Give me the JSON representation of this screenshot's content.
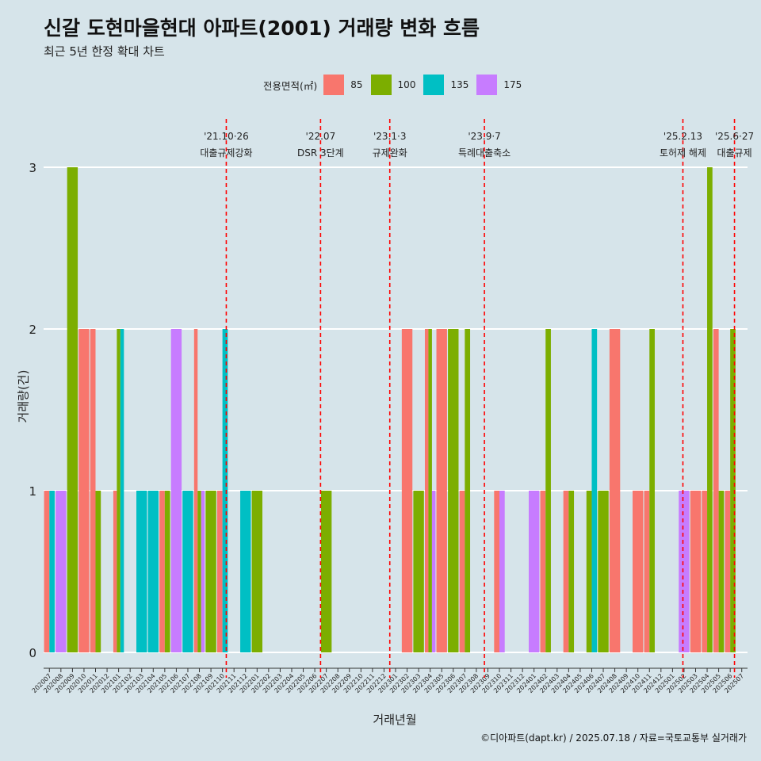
{
  "header": {
    "title": "신갈 도현마을현대 아파트(2001) 거래량 변화 흐름",
    "subtitle": "최근 5년 한정 확대 차트"
  },
  "footer": {
    "credit": "©디아파트(dapt.kr) / 2025.07.18 / 자료=국토교통부 실거래가"
  },
  "colors": {
    "background": "#d6e4ea",
    "gridline": "#ffffff",
    "event_line": "#ff0000"
  },
  "chart_data": {
    "type": "bar",
    "title": "신갈 도현마을현대 아파트(2001) 거래량 변화 흐름",
    "xlabel": "거래년월",
    "ylabel": "거래량(건)",
    "ylim": [
      0,
      3
    ],
    "yticks": [
      0,
      1,
      2,
      3
    ],
    "grid": true,
    "legend_title": "전용면적(㎡)",
    "legend_position": "top",
    "series": [
      {
        "name": "85",
        "color": "#f8766d"
      },
      {
        "name": "100",
        "color": "#7cae00"
      },
      {
        "name": "135",
        "color": "#00bfc4"
      },
      {
        "name": "175",
        "color": "#c77cff"
      }
    ],
    "categories": [
      "202007",
      "202008",
      "202009",
      "202010",
      "202011",
      "202012",
      "202101",
      "202102",
      "202103",
      "202104",
      "202105",
      "202106",
      "202107",
      "202108",
      "202109",
      "202110",
      "202111",
      "202112",
      "202201",
      "202202",
      "202203",
      "202204",
      "202205",
      "202206",
      "202207",
      "202208",
      "202209",
      "202210",
      "202211",
      "202212",
      "202301",
      "202302",
      "202303",
      "202304",
      "202305",
      "202306",
      "202307",
      "202308",
      "202309",
      "202310",
      "202311",
      "202312",
      "202401",
      "202402",
      "202403",
      "202404",
      "202405",
      "202406",
      "202407",
      "202408",
      "202409",
      "202410",
      "202411",
      "202412",
      "202501",
      "202502",
      "202503",
      "202504",
      "202505",
      "202506",
      "202507"
    ],
    "bars": [
      {
        "month": "202007",
        "items": [
          {
            "s": "85",
            "v": 1
          },
          {
            "s": "135",
            "v": 1
          }
        ]
      },
      {
        "month": "202008",
        "items": [
          {
            "s": "175",
            "v": 1
          }
        ]
      },
      {
        "month": "202009",
        "items": [
          {
            "s": "100",
            "v": 3
          }
        ]
      },
      {
        "month": "202010",
        "items": [
          {
            "s": "85",
            "v": 2
          }
        ]
      },
      {
        "month": "202011",
        "items": [
          {
            "s": "85",
            "v": 2
          },
          {
            "s": "100",
            "v": 1
          }
        ]
      },
      {
        "month": "202101",
        "items": [
          {
            "s": "85",
            "v": 1
          },
          {
            "s": "100",
            "v": 2
          },
          {
            "s": "135",
            "v": 2
          }
        ]
      },
      {
        "month": "202103",
        "items": [
          {
            "s": "135",
            "v": 1
          }
        ]
      },
      {
        "month": "202104",
        "items": [
          {
            "s": "135",
            "v": 1
          }
        ]
      },
      {
        "month": "202105",
        "items": [
          {
            "s": "85",
            "v": 1
          },
          {
            "s": "100",
            "v": 1
          }
        ]
      },
      {
        "month": "202106",
        "items": [
          {
            "s": "175",
            "v": 2
          }
        ]
      },
      {
        "month": "202107",
        "items": [
          {
            "s": "135",
            "v": 1
          }
        ]
      },
      {
        "month": "202108",
        "items": [
          {
            "s": "85",
            "v": 2
          },
          {
            "s": "100",
            "v": 1
          },
          {
            "s": "175",
            "v": 1
          }
        ]
      },
      {
        "month": "202109",
        "items": [
          {
            "s": "100",
            "v": 1
          }
        ]
      },
      {
        "month": "202110",
        "items": [
          {
            "s": "85",
            "v": 1
          },
          {
            "s": "135",
            "v": 2
          }
        ]
      },
      {
        "month": "202112",
        "items": [
          {
            "s": "135",
            "v": 1
          }
        ]
      },
      {
        "month": "202201",
        "items": [
          {
            "s": "100",
            "v": 1
          }
        ]
      },
      {
        "month": "202207",
        "items": [
          {
            "s": "100",
            "v": 1
          }
        ]
      },
      {
        "month": "202302",
        "items": [
          {
            "s": "85",
            "v": 2
          }
        ]
      },
      {
        "month": "202303",
        "items": [
          {
            "s": "100",
            "v": 1
          }
        ]
      },
      {
        "month": "202304",
        "items": [
          {
            "s": "85",
            "v": 2
          },
          {
            "s": "100",
            "v": 2
          },
          {
            "s": "175",
            "v": 1
          }
        ]
      },
      {
        "month": "202305",
        "items": [
          {
            "s": "85",
            "v": 2
          }
        ]
      },
      {
        "month": "202306",
        "items": [
          {
            "s": "100",
            "v": 2
          }
        ]
      },
      {
        "month": "202307",
        "items": [
          {
            "s": "85",
            "v": 1
          },
          {
            "s": "100",
            "v": 2
          }
        ]
      },
      {
        "month": "202310",
        "items": [
          {
            "s": "85",
            "v": 1
          },
          {
            "s": "175",
            "v": 1
          }
        ]
      },
      {
        "month": "202401",
        "items": [
          {
            "s": "175",
            "v": 1
          }
        ]
      },
      {
        "month": "202402",
        "items": [
          {
            "s": "85",
            "v": 1
          },
          {
            "s": "100",
            "v": 2
          }
        ]
      },
      {
        "month": "202404",
        "items": [
          {
            "s": "85",
            "v": 1
          },
          {
            "s": "100",
            "v": 1
          }
        ]
      },
      {
        "month": "202406",
        "items": [
          {
            "s": "100",
            "v": 1
          },
          {
            "s": "135",
            "v": 2
          }
        ]
      },
      {
        "month": "202407",
        "items": [
          {
            "s": "100",
            "v": 1
          }
        ]
      },
      {
        "month": "202408",
        "items": [
          {
            "s": "85",
            "v": 2
          }
        ]
      },
      {
        "month": "202410",
        "items": [
          {
            "s": "85",
            "v": 1
          }
        ]
      },
      {
        "month": "202411",
        "items": [
          {
            "s": "85",
            "v": 1
          },
          {
            "s": "100",
            "v": 2
          }
        ]
      },
      {
        "month": "202502",
        "items": [
          {
            "s": "175",
            "v": 1
          }
        ]
      },
      {
        "month": "202503",
        "items": [
          {
            "s": "85",
            "v": 1
          }
        ]
      },
      {
        "month": "202504",
        "items": [
          {
            "s": "85",
            "v": 1
          },
          {
            "s": "100",
            "v": 3
          }
        ]
      },
      {
        "month": "202505",
        "items": [
          {
            "s": "85",
            "v": 2
          },
          {
            "s": "100",
            "v": 1
          }
        ]
      },
      {
        "month": "202506",
        "items": [
          {
            "s": "85",
            "v": 1
          },
          {
            "s": "100",
            "v": 2
          }
        ]
      }
    ],
    "events": [
      {
        "month": "202110",
        "offset": 0.83,
        "date": "'21.10·26",
        "label": "대출규제강화"
      },
      {
        "month": "202207",
        "offset": 0,
        "date": "'22.07",
        "label": "DSR 3단계"
      },
      {
        "month": "202301",
        "offset": 0,
        "date": "'23.1·3",
        "label": "규제완화"
      },
      {
        "month": "202309",
        "offset": 0.2,
        "date": "'23.9·7",
        "label": "특례대출축소"
      },
      {
        "month": "202502",
        "offset": 0.4,
        "date": "'25.2.13",
        "label": "토허제 해제"
      },
      {
        "month": "202506",
        "offset": 0.87,
        "date": "'25.6·27",
        "label": "대출규제"
      }
    ]
  }
}
